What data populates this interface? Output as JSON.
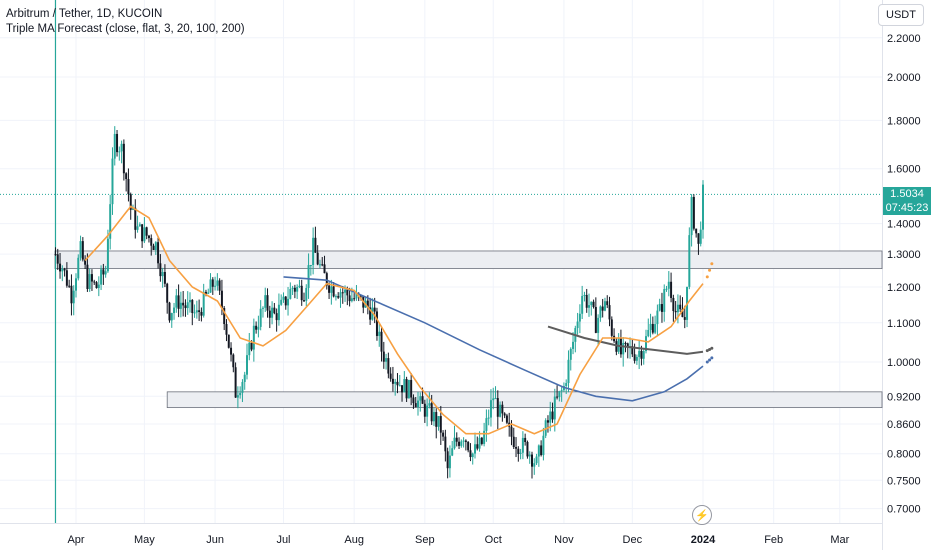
{
  "legend": {
    "title": "Arbitrum / Tether, 1D, KUCOIN",
    "indicator": "Triple MA Forecast (close, flat, 3, 20, 100, 200)"
  },
  "currency": "USDT",
  "last_price": "1.5034",
  "countdown": "07:45:23",
  "flash_icon": "lightning-icon",
  "colors": {
    "up": "#26a69a",
    "down": "#131722",
    "ma_fast": "#f7a042",
    "ma_mid": "#4a6fae",
    "ma_slow": "#5d5d5d",
    "zone_fill": "#eceef2",
    "zone_stroke": "#6b6f7a",
    "price_line": "#26a69a"
  },
  "chart_data": {
    "type": "candlestick",
    "symbol": "Arbitrum / Tether",
    "interval": "1D",
    "exchange": "KUCOIN",
    "y_scale": "log",
    "ylim": [
      0.68,
      2.3
    ],
    "y_ticks": [
      "2.2000",
      "2.0000",
      "1.8000",
      "1.6000",
      "1.4000",
      "1.3000",
      "1.2000",
      "1.1000",
      "1.0000",
      "0.9200",
      "0.8600",
      "0.8000",
      "0.7500",
      "0.7000"
    ],
    "x_ticks": [
      "Apr",
      "May",
      "Jun",
      "Jul",
      "Aug",
      "Sep",
      "Oct",
      "Nov",
      "Dec",
      "2024",
      "Feb",
      "Mar"
    ],
    "x_tick_dates": [
      "2023-04-01",
      "2023-05-01",
      "2023-06-01",
      "2023-07-01",
      "2023-08-01",
      "2023-09-01",
      "2023-10-01",
      "2023-11-01",
      "2023-12-01",
      "2024-01-01",
      "2024-02-01",
      "2024-03-01"
    ],
    "zones": [
      {
        "low": 1.255,
        "high": 1.31
      },
      {
        "low": 0.895,
        "high": 0.93,
        "start": "2023-05-11"
      }
    ],
    "listing_line": "2023-03-23",
    "last_price": 1.5034,
    "ohlc_anchors": [
      [
        "2023-03-23",
        1.3
      ],
      [
        "2023-03-26",
        1.26
      ],
      [
        "2023-03-30",
        1.18
      ],
      [
        "2023-04-03",
        1.31
      ],
      [
        "2023-04-06",
        1.22
      ],
      [
        "2023-04-10",
        1.2
      ],
      [
        "2023-04-14",
        1.25
      ],
      [
        "2023-04-18",
        1.72
      ],
      [
        "2023-04-21",
        1.68
      ],
      [
        "2023-04-25",
        1.45
      ],
      [
        "2023-04-28",
        1.38
      ],
      [
        "2023-05-02",
        1.36
      ],
      [
        "2023-05-06",
        1.33
      ],
      [
        "2023-05-09",
        1.23
      ],
      [
        "2023-05-12",
        1.13
      ],
      [
        "2023-05-16",
        1.16
      ],
      [
        "2023-05-20",
        1.14
      ],
      [
        "2023-05-24",
        1.12
      ],
      [
        "2023-05-28",
        1.17
      ],
      [
        "2023-06-01",
        1.22
      ],
      [
        "2023-06-05",
        1.12
      ],
      [
        "2023-06-10",
        0.93
      ],
      [
        "2023-06-14",
        0.97
      ],
      [
        "2023-06-18",
        1.08
      ],
      [
        "2023-06-23",
        1.15
      ],
      [
        "2023-06-27",
        1.12
      ],
      [
        "2023-07-01",
        1.15
      ],
      [
        "2023-07-05",
        1.2
      ],
      [
        "2023-07-10",
        1.19
      ],
      [
        "2023-07-14",
        1.32
      ],
      [
        "2023-07-18",
        1.24
      ],
      [
        "2023-07-22",
        1.2
      ],
      [
        "2023-07-26",
        1.19
      ],
      [
        "2023-07-31",
        1.17
      ],
      [
        "2023-08-04",
        1.16
      ],
      [
        "2023-08-09",
        1.13
      ],
      [
        "2023-08-13",
        1.03
      ],
      [
        "2023-08-17",
        0.98
      ],
      [
        "2023-08-21",
        0.95
      ],
      [
        "2023-08-26",
        0.93
      ],
      [
        "2023-08-30",
        0.9
      ],
      [
        "2023-09-04",
        0.88
      ],
      [
        "2023-09-08",
        0.85
      ],
      [
        "2023-09-11",
        0.77
      ],
      [
        "2023-09-14",
        0.82
      ],
      [
        "2023-09-18",
        0.84
      ],
      [
        "2023-09-22",
        0.8
      ],
      [
        "2023-09-26",
        0.82
      ],
      [
        "2023-10-01",
        0.92
      ],
      [
        "2023-10-04",
        0.88
      ],
      [
        "2023-10-08",
        0.84
      ],
      [
        "2023-10-12",
        0.82
      ],
      [
        "2023-10-16",
        0.81
      ],
      [
        "2023-10-20",
        0.78
      ],
      [
        "2023-10-24",
        0.85
      ],
      [
        "2023-10-28",
        0.9
      ],
      [
        "2023-11-01",
        0.94
      ],
      [
        "2023-11-05",
        1.05
      ],
      [
        "2023-11-09",
        1.18
      ],
      [
        "2023-11-12",
        1.15
      ],
      [
        "2023-11-15",
        1.1
      ],
      [
        "2023-11-19",
        1.16
      ],
      [
        "2023-11-22",
        1.08
      ],
      [
        "2023-11-26",
        1.02
      ],
      [
        "2023-11-30",
        1.03
      ],
      [
        "2023-12-03",
        1.02
      ],
      [
        "2023-12-06",
        1.04
      ],
      [
        "2023-12-09",
        1.09
      ],
      [
        "2023-12-13",
        1.13
      ],
      [
        "2023-12-17",
        1.22
      ],
      [
        "2023-12-20",
        1.13
      ],
      [
        "2023-12-24",
        1.11
      ],
      [
        "2023-12-27",
        1.46
      ],
      [
        "2023-12-30",
        1.32
      ],
      [
        "2024-01-01",
        1.5034
      ]
    ],
    "ma_fast_anchors": [
      [
        "2023-04-05",
        1.28
      ],
      [
        "2023-04-15",
        1.36
      ],
      [
        "2023-04-25",
        1.46
      ],
      [
        "2023-05-03",
        1.42
      ],
      [
        "2023-05-12",
        1.28
      ],
      [
        "2023-05-22",
        1.2
      ],
      [
        "2023-06-02",
        1.16
      ],
      [
        "2023-06-12",
        1.06
      ],
      [
        "2023-06-22",
        1.04
      ],
      [
        "2023-07-02",
        1.08
      ],
      [
        "2023-07-12",
        1.15
      ],
      [
        "2023-07-20",
        1.21
      ],
      [
        "2023-08-01",
        1.19
      ],
      [
        "2023-08-10",
        1.12
      ],
      [
        "2023-08-20",
        1.02
      ],
      [
        "2023-08-30",
        0.94
      ],
      [
        "2023-09-09",
        0.88
      ],
      [
        "2023-09-19",
        0.84
      ],
      [
        "2023-09-29",
        0.84
      ],
      [
        "2023-10-09",
        0.86
      ],
      [
        "2023-10-19",
        0.84
      ],
      [
        "2023-10-29",
        0.86
      ],
      [
        "2023-11-08",
        0.97
      ],
      [
        "2023-11-18",
        1.06
      ],
      [
        "2023-11-28",
        1.06
      ],
      [
        "2023-12-08",
        1.05
      ],
      [
        "2023-12-18",
        1.09
      ],
      [
        "2023-12-26",
        1.16
      ],
      [
        "2024-01-01",
        1.21
      ]
    ],
    "ma_fast_forecast": [
      [
        "2024-01-02",
        1.23
      ],
      [
        "2024-01-03",
        1.25
      ],
      [
        "2024-01-04",
        1.27
      ]
    ],
    "ma_mid_anchors": [
      [
        "2023-07-01",
        1.23
      ],
      [
        "2023-07-20",
        1.22
      ],
      [
        "2023-08-10",
        1.16
      ],
      [
        "2023-09-01",
        1.1
      ],
      [
        "2023-09-25",
        1.03
      ],
      [
        "2023-10-15",
        0.98
      ],
      [
        "2023-11-01",
        0.94
      ],
      [
        "2023-11-15",
        0.92
      ],
      [
        "2023-12-01",
        0.91
      ],
      [
        "2023-12-15",
        0.93
      ],
      [
        "2023-12-25",
        0.96
      ],
      [
        "2024-01-01",
        0.99
      ]
    ],
    "ma_mid_forecast": [
      [
        "2024-01-02",
        1.0
      ],
      [
        "2024-01-03",
        1.005
      ],
      [
        "2024-01-04",
        1.01
      ]
    ],
    "ma_slow_anchors": [
      [
        "2023-10-25",
        1.09
      ],
      [
        "2023-11-10",
        1.06
      ],
      [
        "2023-11-25",
        1.04
      ],
      [
        "2023-12-10",
        1.03
      ],
      [
        "2023-12-25",
        1.02
      ],
      [
        "2024-01-01",
        1.025
      ]
    ],
    "ma_slow_forecast": [
      [
        "2024-01-02",
        1.028
      ],
      [
        "2024-01-03",
        1.031
      ],
      [
        "2024-01-04",
        1.034
      ]
    ]
  }
}
